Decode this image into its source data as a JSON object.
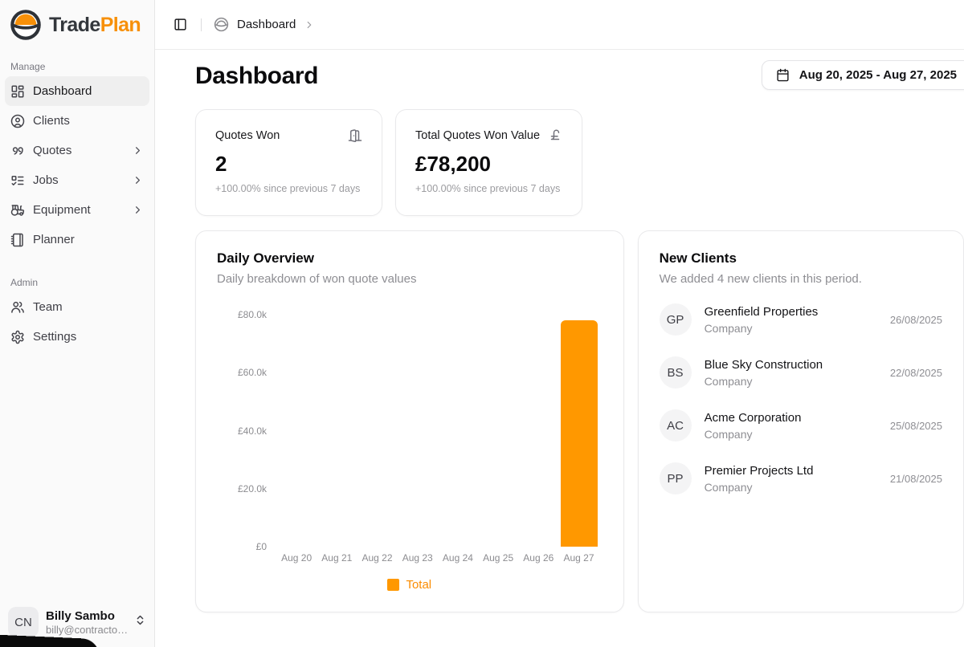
{
  "brand": {
    "name_primary": "Trade",
    "name_secondary": "Plan"
  },
  "colors": {
    "accent": "#F79009",
    "bar": "#FF9800",
    "legend_text": "#FB8C00",
    "sidebar_bg": "#FAFAFA",
    "active_item_bg": "#EFEFEF"
  },
  "breadcrumb": {
    "current": "Dashboard"
  },
  "page": {
    "title": "Dashboard",
    "date_range": "Aug 20, 2025 - Aug 27, 2025"
  },
  "sidebar": {
    "sections": [
      {
        "label": "Manage",
        "items": [
          {
            "label": "Dashboard",
            "icon": "dashboard-grid-icon",
            "active": true,
            "chevron": false
          },
          {
            "label": "Clients",
            "icon": "clients-icon",
            "active": false,
            "chevron": false
          },
          {
            "label": "Quotes",
            "icon": "quotes-icon",
            "active": false,
            "chevron": true
          },
          {
            "label": "Jobs",
            "icon": "jobs-icon",
            "active": false,
            "chevron": true
          },
          {
            "label": "Equipment",
            "icon": "equipment-icon",
            "active": false,
            "chevron": true
          },
          {
            "label": "Planner",
            "icon": "planner-icon",
            "active": false,
            "chevron": false
          }
        ]
      },
      {
        "label": "Admin",
        "items": [
          {
            "label": "Team",
            "icon": "team-icon",
            "active": false,
            "chevron": false
          },
          {
            "label": "Settings",
            "icon": "settings-icon",
            "active": false,
            "chevron": false
          }
        ]
      }
    ],
    "user": {
      "initials": "CN",
      "name": "Billy Sambo",
      "email": "billy@contracto…"
    }
  },
  "stats": [
    {
      "label": "Quotes Won",
      "icon": "door-open-icon",
      "value": "2",
      "delta": "+100.00% since previous 7 days"
    },
    {
      "label": "Total Quotes Won Value",
      "icon": "pound-sterling-icon",
      "value": "£78,200",
      "delta": "+100.00% since previous 7 days"
    }
  ],
  "daily_overview": {
    "title": "Daily Overview",
    "subtitle": "Daily breakdown of won quote values",
    "chart_data": {
      "type": "bar",
      "categories": [
        "Aug 20",
        "Aug 21",
        "Aug 22",
        "Aug 23",
        "Aug 24",
        "Aug 25",
        "Aug 26",
        "Aug 27"
      ],
      "values": [
        0,
        0,
        0,
        0,
        0,
        0,
        0,
        78200
      ],
      "series_name": "Total",
      "title": "Daily Overview",
      "xlabel": "",
      "ylabel": "",
      "ylim": [
        0,
        80000
      ],
      "ytick_labels": [
        "£80.0k",
        "£60.0k",
        "£40.0k",
        "£20.0k",
        "£0"
      ],
      "grid": false,
      "legend": [
        "Total"
      ],
      "legend_position": "bottom",
      "bar_color": "#FF9800"
    }
  },
  "new_clients": {
    "title": "New Clients",
    "subtitle": "We added 4 new clients in this period.",
    "clients": [
      {
        "initials": "GP",
        "name": "Greenfield Properties",
        "type": "Company",
        "date": "26/08/2025"
      },
      {
        "initials": "BS",
        "name": "Blue Sky Construction",
        "type": "Company",
        "date": "22/08/2025"
      },
      {
        "initials": "AC",
        "name": "Acme Corporation",
        "type": "Company",
        "date": "25/08/2025"
      },
      {
        "initials": "PP",
        "name": "Premier Projects Ltd",
        "type": "Company",
        "date": "21/08/2025"
      }
    ]
  }
}
